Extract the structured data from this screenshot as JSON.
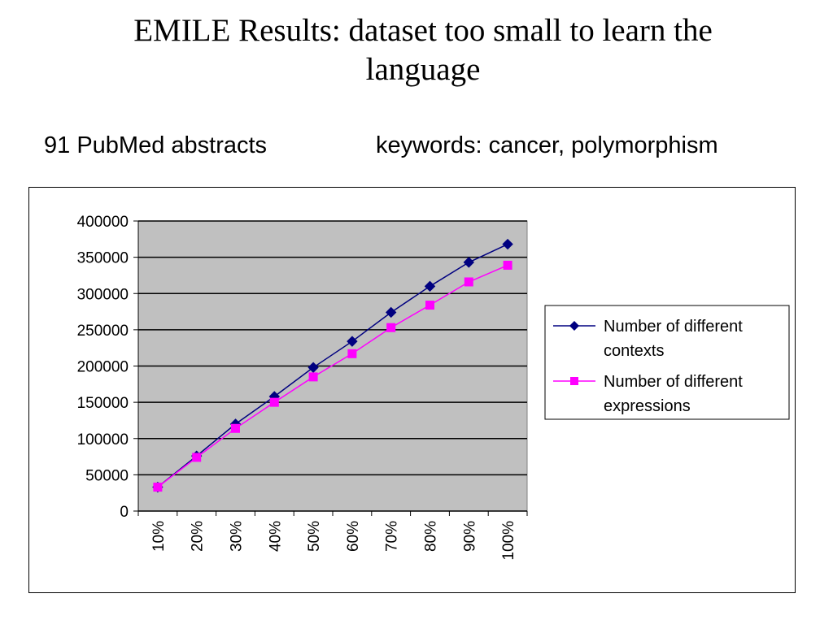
{
  "slide": {
    "title_line1": "EMILE Results: dataset too small to learn the",
    "title_line2": "language",
    "subtitle_left": "91 PubMed abstracts",
    "subtitle_right": "keywords: cancer, polymorphism"
  },
  "chart_data": {
    "type": "line",
    "categories": [
      "10%",
      "20%",
      "30%",
      "40%",
      "50%",
      "60%",
      "70%",
      "80%",
      "90%",
      "100%"
    ],
    "series": [
      {
        "name": "Number of different contexts",
        "legend_lines": [
          "Number of different",
          "contexts"
        ],
        "color": "#000080",
        "marker": "diamond",
        "values": [
          33000,
          76000,
          120000,
          158000,
          198000,
          234000,
          274000,
          310000,
          343000,
          368000
        ]
      },
      {
        "name": "Number of different expressions",
        "legend_lines": [
          "Number of different",
          "expressions"
        ],
        "color": "#FF00FF",
        "marker": "square",
        "values": [
          33000,
          74000,
          114000,
          150000,
          185000,
          217000,
          253000,
          284000,
          316000,
          339000
        ]
      }
    ],
    "ylim": [
      0,
      400000
    ],
    "yticks": [
      0,
      50000,
      100000,
      150000,
      200000,
      250000,
      300000,
      350000,
      400000
    ],
    "grid": true,
    "plot_background": "#C0C0C0",
    "legend_position": "right",
    "xlabel": "",
    "ylabel": ""
  }
}
